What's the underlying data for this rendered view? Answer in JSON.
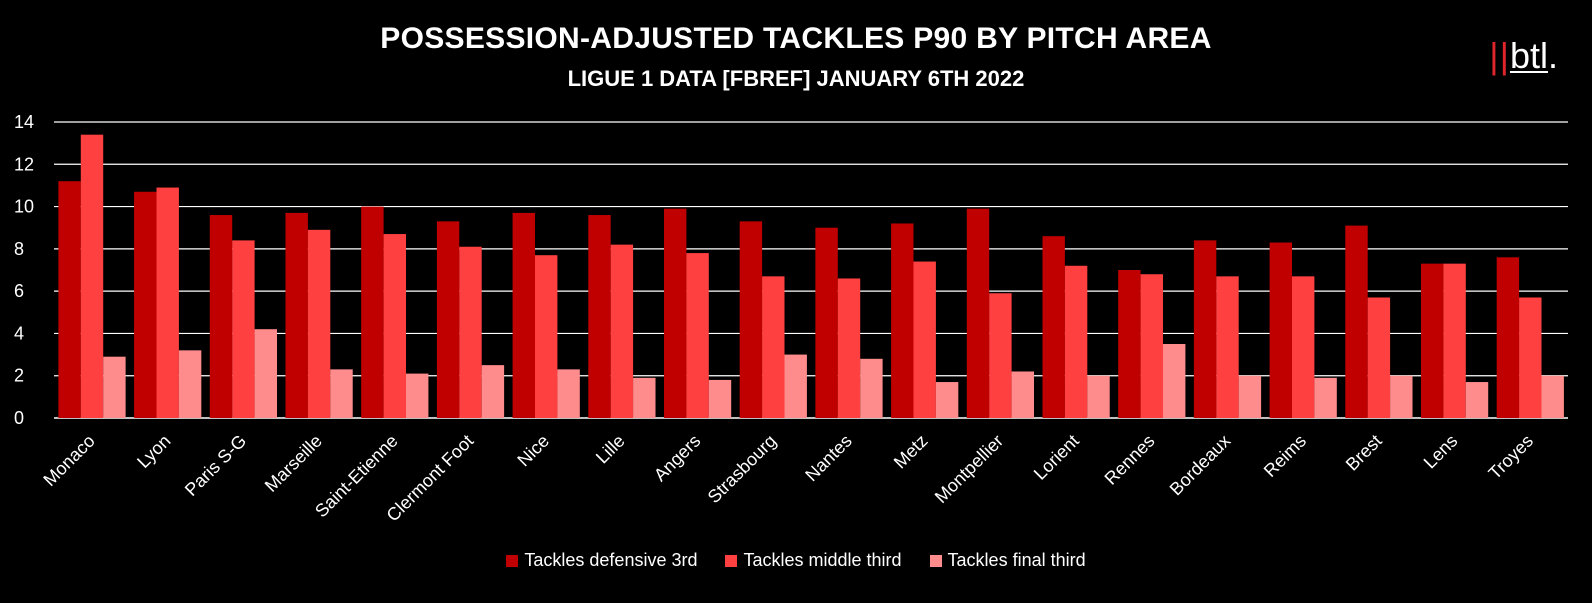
{
  "title": "POSSESSION-ADJUSTED  TACKLES P90 BY PITCH AREA",
  "subtitle": "LIGUE 1 DATA [FBREF] JANUARY 6TH 2022",
  "logo": {
    "bars": "||",
    "word": "btl",
    "dot": "."
  },
  "colors": {
    "background": "#000000",
    "series": [
      "#c00000",
      "#ff4040",
      "#ff8c8c"
    ],
    "grid": "#ffffff"
  },
  "chart_data": {
    "type": "bar",
    "title": "POSSESSION-ADJUSTED  TACKLES P90 BY PITCH AREA",
    "subtitle": "LIGUE 1 DATA [FBREF] JANUARY 6TH 2022",
    "xlabel": "",
    "ylabel": "",
    "ylim": [
      0,
      14
    ],
    "yticks": [
      0,
      2,
      4,
      6,
      8,
      10,
      12,
      14
    ],
    "grid": true,
    "legend_position": "bottom",
    "categories": [
      "Monaco",
      "Lyon",
      "Paris S-G",
      "Marseille",
      "Saint-Etienne",
      "Clermont Foot",
      "Nice",
      "Lille",
      "Angers",
      "Strasbourg",
      "Nantes",
      "Metz",
      "Montpellier",
      "Lorient",
      "Rennes",
      "Bordeaux",
      "Reims",
      "Brest",
      "Lens",
      "Troyes"
    ],
    "series": [
      {
        "name": "Tackles defensive 3rd",
        "color": "#c00000",
        "values": [
          11.2,
          10.7,
          9.6,
          9.7,
          10.0,
          9.3,
          9.7,
          9.6,
          9.9,
          9.3,
          9.0,
          9.2,
          9.9,
          8.6,
          7.0,
          8.4,
          8.3,
          9.1,
          7.3,
          7.6
        ]
      },
      {
        "name": "Tackles middle third",
        "color": "#ff4040",
        "values": [
          13.4,
          10.9,
          8.4,
          8.9,
          8.7,
          8.1,
          7.7,
          8.2,
          7.8,
          6.7,
          6.6,
          7.4,
          5.9,
          7.2,
          6.8,
          6.7,
          6.7,
          5.7,
          7.3,
          5.7
        ]
      },
      {
        "name": "Tackles final third",
        "color": "#ff8c8c",
        "values": [
          2.9,
          3.2,
          4.2,
          2.3,
          2.1,
          2.5,
          2.3,
          1.9,
          1.8,
          3.0,
          2.8,
          1.7,
          2.2,
          2.0,
          3.5,
          2.0,
          1.9,
          2.0,
          1.7,
          2.0
        ]
      }
    ]
  }
}
